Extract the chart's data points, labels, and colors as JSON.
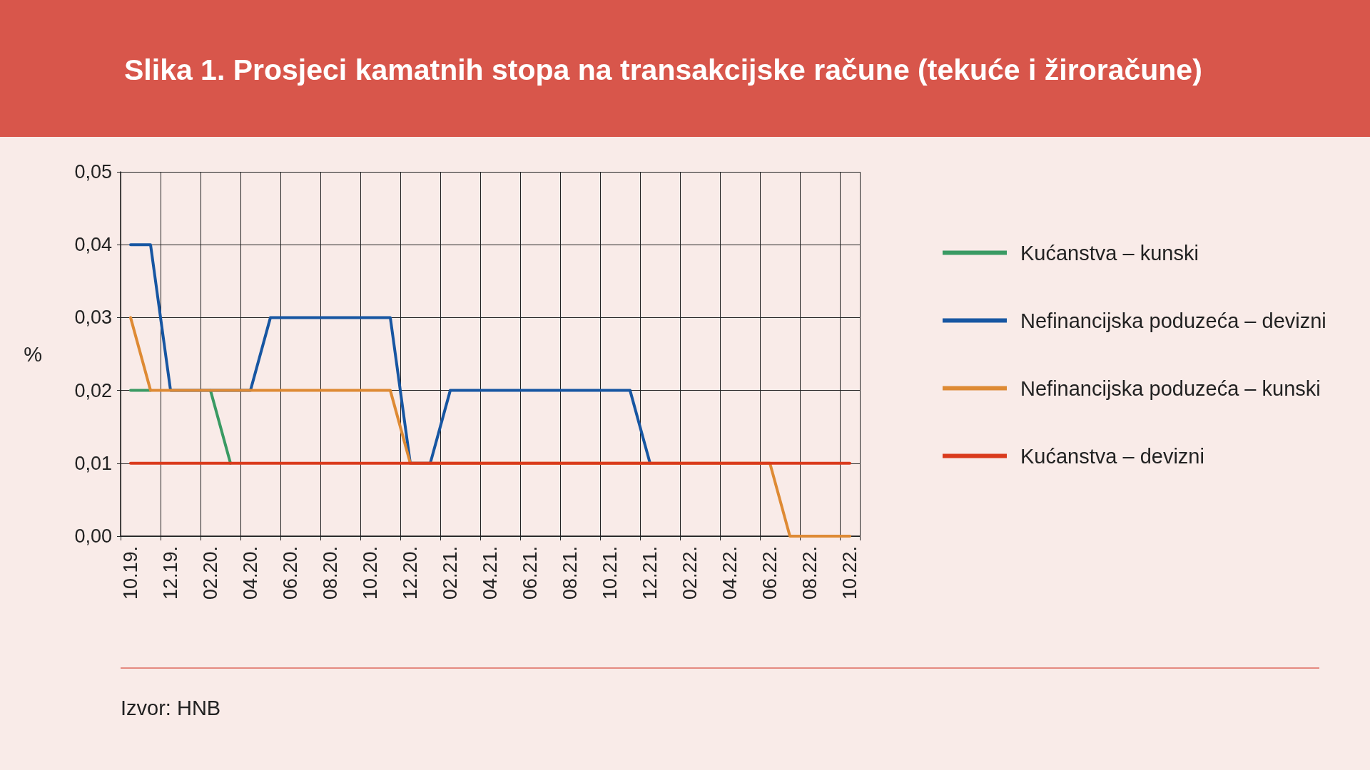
{
  "chart_data": {
    "type": "line",
    "title": "Slika 1. Prosjeci kamatnih stopa na transakcijske račune (tekuće i žiroračune)",
    "ylabel": "%",
    "categories": [
      "10.19.",
      null,
      "12.19.",
      null,
      "02.20.",
      null,
      "04.20.",
      null,
      "06.20.",
      null,
      "08.20.",
      null,
      "10.20.",
      null,
      "12.20.",
      null,
      "02.21.",
      null,
      "04.21.",
      null,
      "06.21.",
      null,
      "08.21.",
      null,
      "10.21.",
      null,
      "12.21.",
      null,
      "02.22.",
      null,
      "04.22.",
      null,
      "06.22.",
      null,
      "08.22.",
      null,
      "10.22."
    ],
    "series": [
      {
        "name": "Kućanstva – kunski",
        "color": "#3a9a63",
        "values": [
          0.02,
          0.02,
          null,
          null,
          0.02,
          0.01,
          null,
          null,
          null,
          null,
          null,
          null,
          null,
          null,
          null,
          null,
          null,
          null,
          null,
          null,
          null,
          null,
          null,
          null,
          null,
          null,
          null,
          null,
          null,
          null,
          null,
          null,
          null,
          null,
          null,
          null,
          null
        ]
      },
      {
        "name": "Nefinancijska poduzeća – devizni",
        "color": "#1756a2",
        "values": [
          0.04,
          0.04,
          0.02,
          0.02,
          0.02,
          0.02,
          0.02,
          0.03,
          0.03,
          0.03,
          0.03,
          0.03,
          0.03,
          0.03,
          0.01,
          0.01,
          0.02,
          0.02,
          0.02,
          0.02,
          0.02,
          0.02,
          0.02,
          0.02,
          0.02,
          0.02,
          0.01,
          null,
          null,
          null,
          null,
          null,
          null,
          null,
          null,
          null,
          null
        ]
      },
      {
        "name": "Nefinancijska poduzeća – kunski",
        "color": "#de8a34",
        "values": [
          0.03,
          0.02,
          0.02,
          0.02,
          0.02,
          0.02,
          0.02,
          0.02,
          0.02,
          0.02,
          0.02,
          0.02,
          0.02,
          0.02,
          0.01,
          0.01,
          0.01,
          0.01,
          0.01,
          0.01,
          0.01,
          0.01,
          0.01,
          0.01,
          0.01,
          0.01,
          0.01,
          0.01,
          0.01,
          0.01,
          0.01,
          0.01,
          0.01,
          0,
          0,
          0,
          0
        ]
      },
      {
        "name": "Kućanstva – devizni",
        "color": "#da3a1c",
        "values": [
          0.01,
          0.01,
          0.01,
          0.01,
          0.01,
          0.01,
          0.01,
          0.01,
          0.01,
          0.01,
          0.01,
          0.01,
          0.01,
          0.01,
          0.01,
          0.01,
          0.01,
          0.01,
          0.01,
          0.01,
          0.01,
          0.01,
          0.01,
          0.01,
          0.01,
          0.01,
          0.01,
          0.01,
          0.01,
          0.01,
          0.01,
          0.01,
          0.01,
          0.01,
          0.01,
          0.01,
          0.01
        ]
      }
    ],
    "ylim": [
      0,
      0.05
    ],
    "yticks": [
      {
        "value": 0,
        "label": "0,00"
      },
      {
        "value": 0.01,
        "label": "0,01"
      },
      {
        "value": 0.02,
        "label": "0,02"
      },
      {
        "value": 0.03,
        "label": "0,03"
      },
      {
        "value": 0.04,
        "label": "0,04"
      },
      {
        "value": 0.05,
        "label": "0,05"
      }
    ],
    "grid": true,
    "legend": "right",
    "marker": "none",
    "line_style": "solid",
    "annotations": [
      "Izvor: HNB"
    ]
  }
}
